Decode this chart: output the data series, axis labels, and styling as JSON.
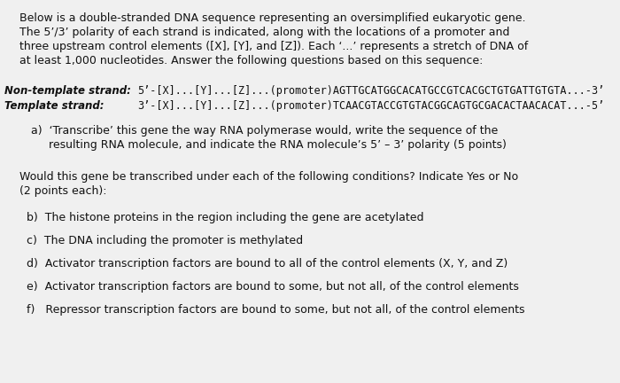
{
  "bg_color": "#f0f0f0",
  "text_color": "#111111",
  "intro_line1": "Below is a double-stranded DNA sequence representing an oversimplified eukaryotic gene.",
  "intro_line2": "The 5’/3’ polarity of each strand is indicated, along with the locations of a promoter and",
  "intro_line3": "three upstream control elements ([X], [Y], and [Z]). Each ‘...’ represents a stretch of DNA of",
  "intro_line4": "at least 1,000 nucleotides. Answer the following questions based on this sequence:",
  "nts_label": "Non-template strand:",
  "nts_seq": "5’-[X]...[Y]...[Z]...(promoter)AGTTGCATGGCACATGCCGTCACGCTGTGATTGTGTA...-3’",
  "ts_label": "Template strand:",
  "ts_seq": "3’-[X]...[Y]...[Z]...(promoter)TCAACGTACCGTGTACGGCAGTGCGACACTAACACAT...-5’",
  "qa_line1": "a)  ‘Transcribe’ this gene the way RNA polymerase would, write the sequence of the",
  "qa_line2": "     resulting RNA molecule, and indicate the RNA molecule’s 5’ – 3’ polarity (5 points)",
  "would_line1": "Would this gene be transcribed under each of the following conditions? Indicate Yes or No",
  "would_line2": "(2 points each):",
  "qb": "b)  The histone proteins in the region including the gene are acetylated",
  "qc": "c)  The DNA including the promoter is methylated",
  "qd": "d)  Activator transcription factors are bound to all of the control elements (X, Y, and Z)",
  "qe": "e)  Activator transcription factors are bound to some, but not all, of the control elements",
  "qf": "f)   Repressor transcription factors are bound to some, but not all, of the control elements"
}
